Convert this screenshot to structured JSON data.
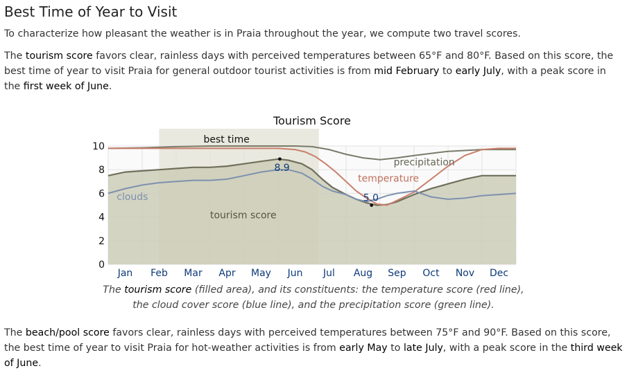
{
  "header": {
    "title": "Best Time of Year to Visit"
  },
  "intro": "To characterize how pleasant the weather is in Praia throughout the year, we compute two travel scores.",
  "tourism": {
    "lead": "The ",
    "term": "tourism score",
    "mid": " favors clear, rainless days with perceived temperatures between 65°F and 80°F. Based on this score, the best time of year to visit Praia for general outdoor tourist activities is from ",
    "from": "mid February",
    "to_word": " to ",
    "to": "early July",
    "peak_lead": ", with a peak score in the ",
    "peak": "first week of June",
    "end": "."
  },
  "caption": {
    "lead": "The ",
    "term": "tourism score",
    "rest": " (filled area), and its constituents: the temperature score (red line), the cloud cover score (blue line), and the precipitation score (green line)."
  },
  "beach": {
    "lead": "The ",
    "term": "beach/pool score",
    "mid": " favors clear, rainless days with perceived temperatures between 75°F and 90°F. Based on this score, the best time of year to visit Praia for hot-weather activities is from ",
    "from": "early May",
    "to_word": " to ",
    "to": "late July",
    "peak_lead": ", with a peak score in the ",
    "peak": "third week of June",
    "end": "."
  },
  "chart_data": {
    "type": "area",
    "title": "Tourism Score",
    "ylim": [
      0,
      10
    ],
    "yticks": [
      0,
      2,
      4,
      6,
      8,
      10
    ],
    "xlim": [
      0,
      12
    ],
    "months": [
      "Jan",
      "Feb",
      "Mar",
      "Apr",
      "May",
      "Jun",
      "Jul",
      "Aug",
      "Sep",
      "Oct",
      "Nov",
      "Dec"
    ],
    "grid": true,
    "best_time": {
      "label": "best time",
      "from": 1.5,
      "to": 6.2
    },
    "peak_annotations": [
      {
        "label": "8.9",
        "x": 5.05,
        "y": 8.9
      },
      {
        "label": "5.0",
        "x": 7.75,
        "y": 5.0
      }
    ],
    "series": [
      {
        "name": "tourism score",
        "role": "filled",
        "color": "#cdcdb8",
        "edge": "#6f6f5c",
        "x": [
          0,
          0.5,
          1,
          1.5,
          2,
          2.5,
          3,
          3.5,
          4,
          4.5,
          5,
          5.3,
          5.7,
          6,
          6.3,
          6.6,
          7,
          7.3,
          7.6,
          7.9,
          8.2,
          8.5,
          9,
          9.5,
          10,
          10.5,
          11,
          11.5,
          12
        ],
        "y": [
          7.5,
          7.8,
          7.9,
          8.0,
          8.1,
          8.2,
          8.2,
          8.3,
          8.5,
          8.7,
          8.9,
          8.8,
          8.5,
          8.0,
          7.2,
          6.5,
          5.9,
          5.5,
          5.2,
          5.0,
          5.05,
          5.3,
          5.9,
          6.4,
          6.8,
          7.2,
          7.5,
          7.5,
          7.5
        ]
      },
      {
        "name": "precipitation",
        "color": "#7a7a6a",
        "x": [
          0,
          1,
          2,
          3,
          4,
          5,
          5.5,
          6,
          6.5,
          7,
          7.5,
          8,
          8.5,
          9,
          10,
          11,
          12
        ],
        "y": [
          9.8,
          9.85,
          9.95,
          10,
          10,
          10,
          10,
          9.95,
          9.7,
          9.3,
          9.0,
          8.85,
          9.0,
          9.2,
          9.55,
          9.7,
          9.7
        ]
      },
      {
        "name": "temperature",
        "color": "#c97f6b",
        "x": [
          0,
          1,
          2,
          3,
          4,
          5,
          5.5,
          5.8,
          6.1,
          6.4,
          6.7,
          7,
          7.3,
          7.6,
          7.9,
          8.2,
          8.5,
          9,
          9.5,
          10,
          10.5,
          11,
          11.5,
          12
        ],
        "y": [
          9.8,
          9.8,
          9.8,
          9.8,
          9.8,
          9.8,
          9.7,
          9.5,
          9.1,
          8.5,
          7.8,
          7.0,
          6.2,
          5.6,
          5.1,
          5.0,
          5.4,
          6.1,
          7.2,
          8.3,
          9.2,
          9.7,
          9.8,
          9.8
        ]
      },
      {
        "name": "clouds",
        "color": "#7d90ad",
        "x": [
          0,
          0.5,
          1,
          1.5,
          2,
          2.5,
          3,
          3.5,
          4,
          4.5,
          5,
          5.3,
          5.7,
          6,
          6.3,
          6.6,
          7,
          7.3,
          7.6,
          7.9,
          8.2,
          8.5,
          9,
          9.5,
          10,
          10.5,
          11,
          11.5,
          12
        ],
        "y": [
          6.0,
          6.4,
          6.7,
          6.9,
          7.0,
          7.1,
          7.1,
          7.2,
          7.5,
          7.8,
          8.0,
          8.0,
          7.7,
          7.2,
          6.6,
          6.2,
          5.9,
          5.5,
          5.3,
          5.5,
          5.8,
          6.0,
          6.2,
          5.7,
          5.5,
          5.6,
          5.8,
          5.9,
          6.0
        ]
      }
    ]
  }
}
